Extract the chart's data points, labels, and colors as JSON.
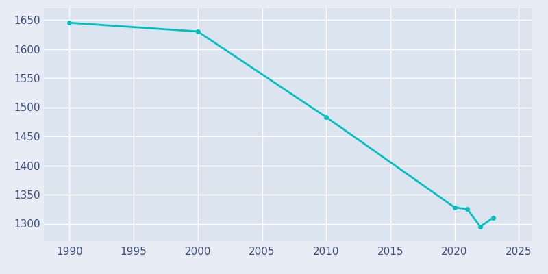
{
  "years": [
    1990,
    2000,
    2010,
    2020,
    2021,
    2022,
    2023
  ],
  "population": [
    1645,
    1630,
    1483,
    1328,
    1325,
    1295,
    1310
  ],
  "line_color": "#00BFBF",
  "bg_color": "#e8edf5",
  "axes_bg_color": "#dce4f0",
  "grid_color": "#ffffff",
  "text_color": "#3d4d7a",
  "ylim": [
    1270,
    1670
  ],
  "xlim": [
    1988,
    2026
  ],
  "yticks": [
    1300,
    1350,
    1400,
    1450,
    1500,
    1550,
    1600,
    1650
  ],
  "xticks": [
    1990,
    1995,
    2000,
    2005,
    2010,
    2015,
    2020,
    2025
  ],
  "line_width": 2.0,
  "marker": "o",
  "marker_size": 4
}
